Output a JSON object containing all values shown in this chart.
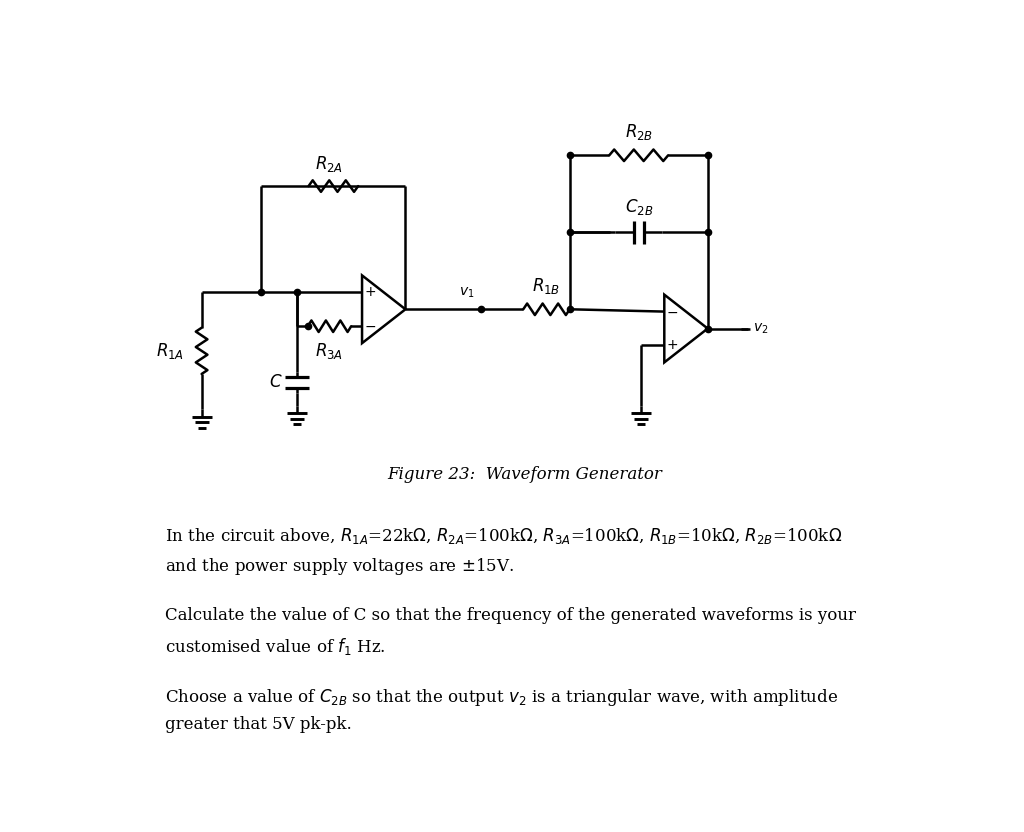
{
  "fig_caption": "Figure 23:  Waveform Generator",
  "text1_line1": "In the circuit above, $R_{1A}$=22k$\\Omega$, $R_{2A}$=100k$\\Omega$, $R_{3A}$=100k$\\Omega$, $R_{1B}$=10k$\\Omega$, $R_{2B}$=100k$\\Omega$",
  "text1_line2": "and the power supply voltages are $\\pm$15V.",
  "text2_line1": "Calculate the value of C so that the frequency of the generated waveforms is your",
  "text2_line2": "customised value of $f_1$ Hz.",
  "text3_line1": "Choose a value of $C_{2B}$ so that the output $v_2$ is a triangular wave, with amplitude",
  "text3_line2": "greater that 5V pk-pk.",
  "bg_color": "#ffffff",
  "line_color": "#000000",
  "lw": 1.8,
  "fontsize_label": 12,
  "fontsize_text": 12
}
